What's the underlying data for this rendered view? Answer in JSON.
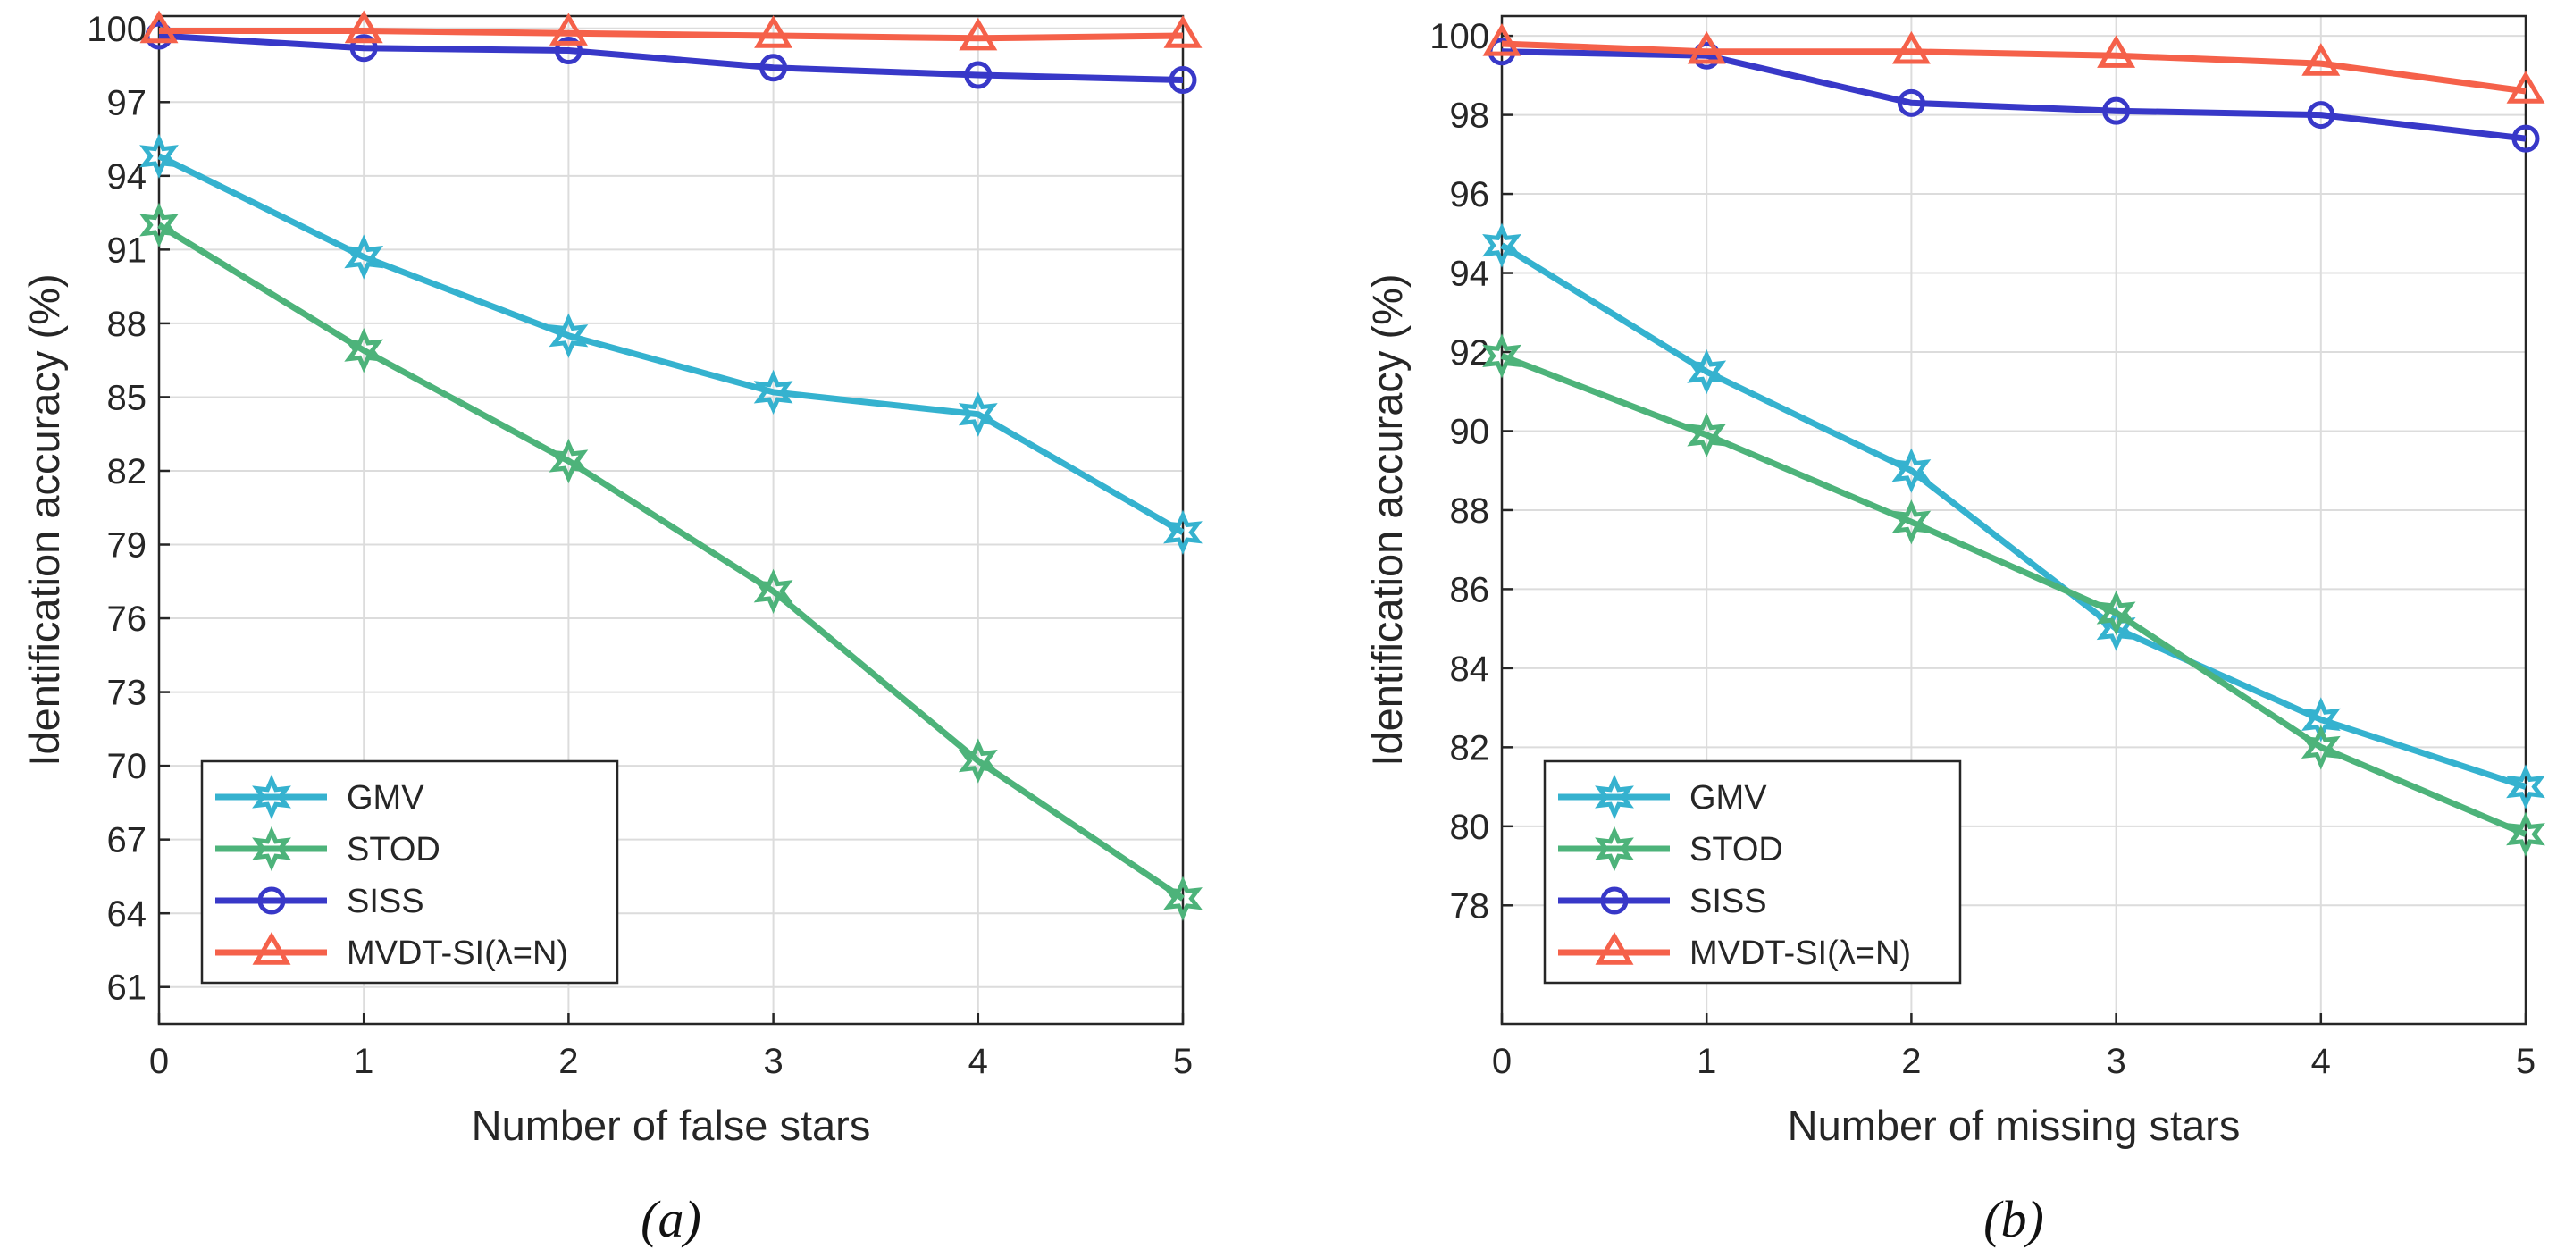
{
  "colors": {
    "GMV": "#35b2cf",
    "STOD": "#4db37a",
    "SISS": "#3838c8",
    "MVDT": "#f5614a",
    "grid": "#dcdcdc",
    "axis": "#262626"
  },
  "chart_data": [
    {
      "type": "line",
      "caption": "(a)",
      "xlabel": "Number of false stars",
      "ylabel": "Identification accuracy (%)",
      "x": [
        0,
        1,
        2,
        3,
        4,
        5
      ],
      "xticks": [
        "0",
        "1",
        "2",
        "3",
        "4",
        "5"
      ],
      "xlim": [
        0,
        5
      ],
      "ylim": [
        59.5,
        100.5
      ],
      "yticks": [
        61,
        64,
        67,
        70,
        73,
        76,
        79,
        82,
        85,
        88,
        91,
        94,
        97,
        100
      ],
      "ytick_labels": [
        "61",
        "64",
        "67",
        "70",
        "73",
        "76",
        "79",
        "82",
        "85",
        "88",
        "91",
        "94",
        "97",
        "100"
      ],
      "grid": true,
      "legend_position": "bottom-left",
      "series": [
        {
          "name": "GMV",
          "label": "GMV",
          "marker": "hexagram",
          "values": [
            94.8,
            90.7,
            87.5,
            85.2,
            84.3,
            79.5
          ]
        },
        {
          "name": "STOD",
          "label": "STOD",
          "marker": "hexagram",
          "values": [
            92.0,
            86.9,
            82.4,
            77.1,
            70.2,
            64.6
          ]
        },
        {
          "name": "SISS",
          "label": "SISS",
          "marker": "circle",
          "values": [
            99.7,
            99.2,
            99.1,
            98.4,
            98.1,
            97.9
          ]
        },
        {
          "name": "MVDT",
          "label": "MVDT-SI(λ=N)",
          "marker": "triangle",
          "values": [
            99.9,
            99.9,
            99.8,
            99.7,
            99.6,
            99.7
          ]
        }
      ]
    },
    {
      "type": "line",
      "caption": "(b)",
      "xlabel": "Number of missing stars",
      "ylabel": "Identification accuracy (%)",
      "x": [
        0,
        1,
        2,
        3,
        4,
        5
      ],
      "xticks": [
        "0",
        "1",
        "2",
        "3",
        "4",
        "5"
      ],
      "xlim": [
        0,
        5
      ],
      "ylim": [
        75,
        100.5
      ],
      "yticks": [
        78,
        80,
        82,
        84,
        86,
        88,
        90,
        92,
        94,
        96,
        98,
        100
      ],
      "ytick_labels": [
        "78",
        "80",
        "82",
        "84",
        "86",
        "88",
        "90",
        "92",
        "94",
        "96",
        "98",
        "100"
      ],
      "grid": true,
      "legend_position": "bottom-left",
      "series": [
        {
          "name": "GMV",
          "label": "GMV",
          "marker": "hexagram",
          "values": [
            94.7,
            91.5,
            89.0,
            85.0,
            82.7,
            81.0
          ]
        },
        {
          "name": "STOD",
          "label": "STOD",
          "marker": "hexagram",
          "values": [
            91.9,
            89.9,
            87.7,
            85.4,
            82.0,
            79.8
          ]
        },
        {
          "name": "SISS",
          "label": "SISS",
          "marker": "circle",
          "values": [
            99.6,
            99.5,
            98.3,
            98.1,
            98.0,
            97.4
          ]
        },
        {
          "name": "MVDT",
          "label": "MVDT-SI(λ=N)",
          "marker": "triangle",
          "values": [
            99.8,
            99.6,
            99.6,
            99.5,
            99.3,
            98.6
          ]
        }
      ]
    }
  ]
}
